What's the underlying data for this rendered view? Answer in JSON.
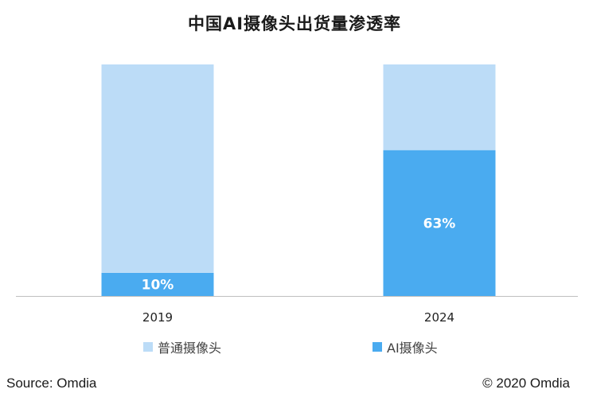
{
  "chart_data": {
    "type": "bar",
    "stacked": true,
    "title": "中国AI摄像头出货量渗透率",
    "categories": [
      "2019",
      "2024"
    ],
    "series": [
      {
        "name": "普通摄像头",
        "values": [
          90,
          37
        ],
        "color": "#bcdcf7"
      },
      {
        "name": "AI摄像头",
        "values": [
          10,
          63
        ],
        "color": "#4aabf0",
        "labels": [
          "10%",
          "63%"
        ]
      }
    ],
    "ylim": [
      0,
      100
    ],
    "grid": false,
    "legend": "bottom"
  },
  "footer": {
    "source": "Source: Omdia",
    "copyright": "© 2020 Omdia"
  }
}
